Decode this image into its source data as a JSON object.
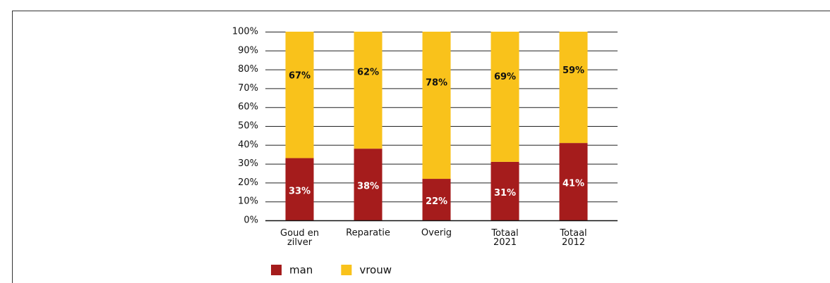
{
  "chart_data": {
    "type": "stacked_bar",
    "categories": [
      "Goud en\nzilver",
      "Reparatie",
      "Overig",
      "Totaal\n2021",
      "Totaal\n2012"
    ],
    "series": [
      {
        "name": "man",
        "color": "#a51c1c",
        "values": [
          33,
          38,
          22,
          31,
          41
        ],
        "value_labels": [
          "33%",
          "38%",
          "22%",
          "31%",
          "41%"
        ]
      },
      {
        "name": "vrouw",
        "color": "#f9c21b",
        "values": [
          67,
          62,
          78,
          69,
          59
        ],
        "value_labels": [
          "67%",
          "62%",
          "78%",
          "69%",
          "59%"
        ]
      }
    ],
    "ylim": [
      0,
      100
    ],
    "yticks": [
      {
        "value": 0,
        "label": "0%"
      },
      {
        "value": 10,
        "label": "10%"
      },
      {
        "value": 20,
        "label": "20%"
      },
      {
        "value": 30,
        "label": "30%"
      },
      {
        "value": 40,
        "label": "40%"
      },
      {
        "value": 50,
        "label": "50%"
      },
      {
        "value": 60,
        "label": "60%"
      },
      {
        "value": 70,
        "label": "70%"
      },
      {
        "value": 80,
        "label": "80%"
      },
      {
        "value": 90,
        "label": "90%"
      },
      {
        "value": 100,
        "label": "100%"
      }
    ],
    "grid": true,
    "legend": "bottom-left"
  }
}
